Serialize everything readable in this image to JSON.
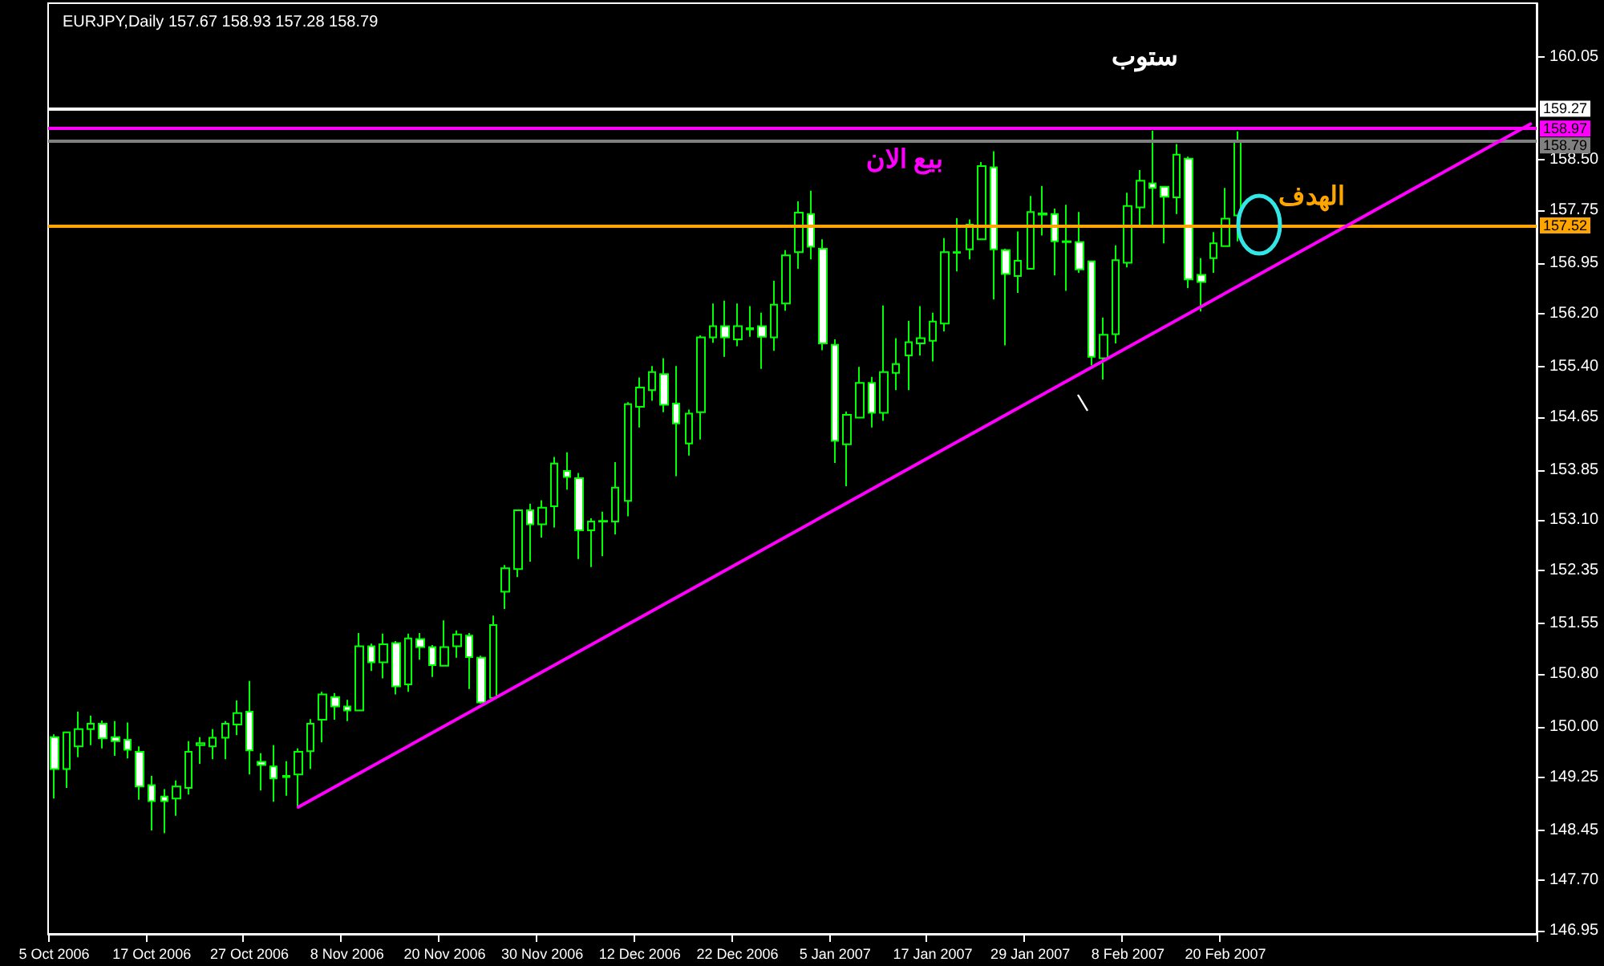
{
  "chart_data": {
    "type": "candlestick",
    "title": "EURJPY,Daily 157.67 158.93 157.28 158.79",
    "categories": [
      "5 Oct 2006",
      null,
      null,
      null,
      null,
      null,
      null,
      null,
      "17 Oct 2006",
      null,
      null,
      null,
      null,
      null,
      null,
      null,
      "27 Oct 2006",
      null,
      null,
      null,
      null,
      null,
      null,
      null,
      "8 Nov 2006",
      null,
      null,
      null,
      null,
      null,
      null,
      null,
      "20 Nov 2006",
      null,
      null,
      null,
      null,
      null,
      null,
      null,
      "30 Nov 2006",
      null,
      null,
      null,
      null,
      null,
      null,
      null,
      "12 Dec 2006",
      null,
      null,
      null,
      null,
      null,
      null,
      null,
      "22 Dec 2006",
      null,
      null,
      null,
      null,
      null,
      null,
      null,
      "5 Jan 2007",
      null,
      null,
      null,
      null,
      null,
      null,
      null,
      "17 Jan 2007",
      null,
      null,
      null,
      null,
      null,
      null,
      null,
      "29 Jan 2007",
      null,
      null,
      null,
      null,
      null,
      null,
      null,
      "8 Feb 2007",
      null,
      null,
      null,
      null,
      null,
      null,
      null,
      "20 Feb 2007",
      null,
      null,
      null,
      null,
      null,
      null,
      null,
      null,
      null,
      null,
      null,
      null,
      null,
      null,
      null,
      null,
      null,
      null,
      null,
      null,
      null,
      null,
      null,
      null,
      null
    ],
    "color": "#00ff00",
    "ohlc": [
      [
        149.85,
        149.89,
        148.93,
        149.37
      ],
      [
        149.37,
        149.93,
        149.09,
        149.92
      ],
      [
        149.71,
        150.23,
        149.55,
        149.97
      ],
      [
        149.97,
        150.17,
        149.73,
        150.05
      ],
      [
        150.05,
        150.1,
        149.68,
        149.83
      ],
      [
        149.85,
        150.09,
        149.57,
        149.79
      ],
      [
        149.81,
        150.07,
        149.53,
        149.66
      ],
      [
        149.63,
        149.71,
        148.91,
        149.11
      ],
      [
        149.13,
        149.27,
        148.45,
        148.89
      ],
      [
        148.96,
        149.07,
        148.41,
        148.89
      ],
      [
        148.93,
        149.2,
        148.67,
        149.11
      ],
      [
        149.09,
        149.79,
        148.99,
        149.63
      ],
      [
        149.73,
        149.85,
        149.45,
        149.76
      ],
      [
        149.71,
        149.97,
        149.52,
        149.84
      ],
      [
        149.84,
        150.09,
        149.52,
        150.05
      ],
      [
        150.04,
        150.4,
        149.88,
        150.21
      ],
      [
        150.23,
        150.69,
        149.29,
        149.65
      ],
      [
        149.48,
        149.61,
        149.05,
        149.43
      ],
      [
        149.41,
        149.73,
        148.88,
        149.23
      ],
      [
        149.27,
        149.49,
        148.97,
        149.25
      ],
      [
        149.29,
        149.68,
        148.81,
        149.63
      ],
      [
        149.64,
        150.12,
        149.37,
        150.05
      ],
      [
        150.11,
        150.53,
        149.77,
        150.49
      ],
      [
        150.45,
        150.51,
        150.11,
        150.31
      ],
      [
        150.31,
        150.41,
        150.09,
        150.25
      ],
      [
        150.25,
        151.41,
        150.24,
        151.21
      ],
      [
        151.21,
        151.25,
        150.84,
        150.97
      ],
      [
        150.97,
        151.4,
        150.73,
        151.24
      ],
      [
        151.26,
        151.29,
        150.49,
        150.61
      ],
      [
        150.64,
        151.4,
        150.53,
        151.33
      ],
      [
        151.32,
        151.41,
        151.01,
        151.2
      ],
      [
        151.2,
        151.23,
        150.75,
        150.93
      ],
      [
        150.92,
        151.6,
        150.92,
        151.2
      ],
      [
        151.21,
        151.45,
        151.04,
        151.39
      ],
      [
        151.37,
        151.41,
        150.57,
        151.05
      ],
      [
        151.04,
        151.07,
        150.35,
        150.37
      ],
      [
        150.44,
        151.67,
        150.43,
        151.53
      ],
      [
        152.03,
        152.43,
        151.77,
        152.38
      ],
      [
        152.37,
        153.25,
        152.25,
        153.25
      ],
      [
        153.25,
        153.35,
        152.48,
        153.04
      ],
      [
        153.04,
        153.4,
        152.84,
        153.29
      ],
      [
        153.31,
        154.05,
        152.99,
        153.95
      ],
      [
        153.84,
        154.12,
        153.56,
        153.75
      ],
      [
        153.73,
        153.81,
        152.52,
        152.95
      ],
      [
        152.95,
        153.13,
        152.4,
        153.08
      ],
      [
        153.08,
        153.23,
        152.56,
        153.09
      ],
      [
        153.08,
        153.97,
        152.89,
        153.59
      ],
      [
        153.39,
        154.87,
        153.16,
        154.84
      ],
      [
        154.8,
        155.24,
        154.49,
        155.09
      ],
      [
        155.05,
        155.41,
        154.89,
        155.32
      ],
      [
        155.29,
        155.53,
        154.72,
        154.83
      ],
      [
        154.85,
        155.41,
        153.76,
        154.55
      ],
      [
        154.25,
        154.76,
        154.07,
        154.7
      ],
      [
        154.72,
        155.87,
        154.31,
        155.84
      ],
      [
        155.84,
        156.35,
        155.76,
        156.01
      ],
      [
        156.01,
        156.39,
        155.55,
        155.84
      ],
      [
        155.81,
        156.35,
        155.71,
        156.01
      ],
      [
        155.96,
        156.31,
        155.85,
        155.98
      ],
      [
        156.01,
        156.21,
        155.37,
        155.85
      ],
      [
        155.84,
        156.69,
        155.64,
        156.33
      ],
      [
        156.35,
        157.15,
        156.24,
        157.07
      ],
      [
        157.12,
        157.88,
        156.87,
        157.71
      ],
      [
        157.69,
        158.04,
        157.01,
        157.2
      ],
      [
        157.17,
        157.31,
        155.65,
        155.75
      ],
      [
        155.73,
        155.81,
        153.96,
        154.29
      ],
      [
        154.24,
        154.73,
        153.61,
        154.68
      ],
      [
        154.64,
        155.4,
        154.64,
        155.16
      ],
      [
        155.16,
        155.25,
        154.49,
        154.71
      ],
      [
        154.71,
        156.32,
        154.59,
        155.32
      ],
      [
        155.31,
        155.83,
        155.05,
        155.44
      ],
      [
        155.57,
        156.09,
        155.05,
        155.77
      ],
      [
        155.75,
        156.31,
        155.57,
        155.83
      ],
      [
        155.79,
        156.21,
        155.48,
        156.08
      ],
      [
        156.05,
        157.33,
        155.93,
        157.12
      ],
      [
        157.11,
        157.63,
        156.83,
        157.12
      ],
      [
        157.16,
        157.61,
        157.01,
        157.53
      ],
      [
        157.31,
        158.47,
        157.31,
        158.41
      ],
      [
        158.39,
        158.63,
        156.41,
        157.16
      ],
      [
        157.15,
        157.17,
        155.72,
        156.79
      ],
      [
        156.76,
        157.43,
        156.51,
        156.99
      ],
      [
        156.87,
        157.96,
        156.87,
        157.72
      ],
      [
        157.68,
        158.11,
        157.37,
        157.7
      ],
      [
        157.69,
        157.77,
        156.77,
        157.28
      ],
      [
        157.27,
        157.83,
        156.54,
        157.28
      ],
      [
        157.27,
        157.72,
        156.81,
        156.86
      ],
      [
        156.98,
        156.98,
        155.42,
        155.55
      ],
      [
        155.53,
        156.14,
        155.21,
        155.88
      ],
      [
        155.89,
        157.22,
        155.75,
        157.0
      ],
      [
        156.96,
        158.01,
        156.89,
        157.81
      ],
      [
        157.79,
        158.35,
        157.52,
        158.19
      ],
      [
        158.15,
        158.94,
        157.52,
        158.08
      ],
      [
        158.1,
        158.1,
        157.25,
        157.95
      ],
      [
        157.94,
        158.74,
        157.69,
        158.58
      ],
      [
        158.52,
        158.55,
        156.58,
        156.71
      ],
      [
        156.78,
        157.03,
        156.23,
        156.67
      ],
      [
        157.03,
        157.42,
        156.81,
        157.25
      ],
      [
        157.21,
        158.08,
        157.21,
        157.62
      ],
      [
        157.67,
        158.93,
        157.28,
        158.79
      ],
      null,
      null,
      null,
      null,
      null,
      null,
      null,
      null,
      null,
      null,
      null,
      null,
      null,
      null,
      null,
      null,
      null,
      null,
      null,
      null,
      null,
      null,
      null,
      null
    ],
    "colors": [
      "#ffffff",
      "#000000",
      "#000000",
      "#000000",
      "#ffffff",
      "#ffffff",
      "#ffffff",
      "#ffffff",
      "#ffffff",
      "#ffffff",
      "#000000",
      "#000000",
      "#000000",
      "#000000",
      "#000000",
      "#000000",
      "#ffffff",
      "#ffffff",
      "#ffffff",
      "#ffffff",
      "#000000",
      "#000000",
      "#000000",
      "#ffffff",
      "#ffffff",
      "#000000",
      "#ffffff",
      "#000000",
      "#ffffff",
      "#000000",
      "#ffffff",
      "#ffffff",
      "#000000",
      "#000000",
      "#ffffff",
      "#ffffff",
      "#000000",
      "#000000",
      "#000000",
      "#ffffff",
      "#000000",
      "#000000",
      "#ffffff",
      "#ffffff",
      "#000000",
      "#000000",
      "#000000",
      "#000000",
      "#000000",
      "#000000",
      "#ffffff",
      "#ffffff",
      "#000000",
      "#000000",
      "#000000",
      "#ffffff",
      "#000000",
      "#000000",
      "#ffffff",
      "#000000",
      "#000000",
      "#000000",
      "#ffffff",
      "#ffffff",
      "#ffffff",
      "#000000",
      "#000000",
      "#ffffff",
      "#000000",
      "#000000",
      "#000000",
      "#000000",
      "#000000",
      "#000000",
      "#000000",
      "#000000",
      "#000000",
      "#ffffff",
      "#ffffff",
      "#000000",
      "#000000",
      "#000000",
      "#ffffff",
      "#000000",
      "#ffffff",
      "#ffffff",
      "#000000",
      "#000000",
      "#000000",
      "#000000",
      "#ffffff",
      "#ffffff",
      "#000000",
      "#ffffff",
      "#ffffff",
      "#000000",
      "#000000",
      "#000000",
      null,
      null,
      null,
      null,
      null,
      null,
      null,
      null,
      null,
      null,
      null,
      null,
      null,
      null,
      null,
      null,
      null,
      null,
      null,
      null,
      null,
      null,
      null,
      null
    ],
    "series": [
      {
        "type": "line",
        "color": "#ff00ff",
        "values": [
          null,
          null,
          null,
          null,
          null,
          null,
          null,
          null,
          null,
          null,
          null,
          null,
          null,
          null,
          null,
          null,
          null,
          null,
          null,
          null,
          148.8,
          null,
          null,
          null,
          null,
          null,
          null,
          null,
          null,
          null,
          null,
          null,
          null,
          null,
          null,
          null,
          null,
          null,
          null,
          null,
          null,
          null,
          null,
          null,
          null,
          null,
          null,
          null,
          null,
          null,
          null,
          null,
          null,
          null,
          null,
          null,
          null,
          null,
          null,
          null,
          null,
          null,
          null,
          null,
          null,
          null,
          null,
          null,
          null,
          null,
          null,
          null,
          null,
          null,
          null,
          null,
          null,
          null,
          null,
          null,
          null,
          null,
          null,
          null,
          null,
          null,
          null,
          null,
          null,
          null,
          null,
          null,
          null,
          null,
          null,
          null,
          null,
          null,
          null,
          null,
          null,
          null,
          null,
          null,
          null,
          null,
          null,
          null,
          null,
          null,
          null,
          null,
          null,
          null,
          null,
          null,
          null,
          null,
          null,
          null,
          null,
          159.04
        ]
      }
    ],
    "ylim": [
      146.9,
      160.85
    ],
    "yticks": [
      146.95,
      {
        "value": 147.7,
        "label": "147.70"
      },
      148.45,
      149.25,
      {
        "value": 150,
        "label": "150.00"
      },
      {
        "value": 150.8,
        "label": "150.80"
      },
      151.55,
      152.35,
      {
        "value": 153.1,
        "label": "153.10"
      },
      153.85,
      154.65,
      {
        "value": 155.4,
        "label": "155.40"
      },
      {
        "value": 156.2,
        "label": "156.20"
      },
      156.95,
      157.75,
      {
        "value": 158.5,
        "label": "158.50"
      },
      160.05
    ],
    "ref_lines": [
      {
        "axis": "y",
        "value": 159.27,
        "label": "159.27",
        "color": "#ffffff"
      },
      {
        "axis": "y",
        "value": 158.97,
        "label": "158.97",
        "color": "#ff00ff"
      },
      {
        "axis": "y",
        "value": 158.79,
        "label": "158.79",
        "color": "#808080"
      },
      {
        "axis": "y",
        "value": 157.52,
        "label": "157.52",
        "color": "#ffa500"
      }
    ],
    "annotations": [
      "ستوب",
      "بيع الان",
      "الهدف"
    ]
  }
}
